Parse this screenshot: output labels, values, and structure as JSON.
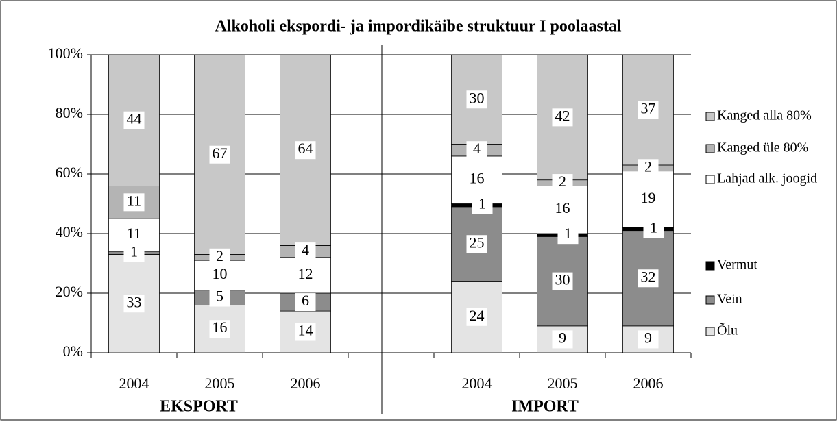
{
  "chart_data": {
    "type": "stacked_bar",
    "title": "Alkoholi ekspordi- ja impordikäibe struktuur I poolaastal",
    "annotations": [
      "EKSPORT",
      "IMPORT"
    ],
    "categories": [
      "2004",
      "2005",
      "2006",
      null,
      "2004",
      "2005",
      "2006"
    ],
    "series": [
      {
        "name": "Õlu",
        "color": "#e4e4e4",
        "values": [
          33,
          16,
          14,
          null,
          24,
          9,
          9
        ]
      },
      {
        "name": "Vein",
        "color": "#8c8c8c",
        "values": [
          1,
          5,
          6,
          null,
          25,
          30,
          32
        ]
      },
      {
        "name": "Vermut",
        "color": "#000000",
        "values": [
          null,
          null,
          null,
          null,
          1,
          1,
          1
        ]
      },
      {
        "name": "Lahjad alk. joogid",
        "color": "#ffffff",
        "values": [
          11,
          10,
          12,
          null,
          16,
          16,
          19
        ]
      },
      {
        "name": "Kanged üle 80%",
        "color": "#b4b4b4",
        "values": [
          11,
          2,
          4,
          null,
          4,
          2,
          2
        ]
      },
      {
        "name": "Kanged alla 80%",
        "color": "#c8c8c8",
        "values": [
          44,
          67,
          64,
          null,
          30,
          42,
          37
        ]
      }
    ],
    "ylim": [
      0,
      100
    ],
    "yticks": [
      {
        "value": 0,
        "label": "0%"
      },
      {
        "value": 20,
        "label": "20%"
      },
      {
        "value": 40,
        "label": "40%"
      },
      {
        "value": 60,
        "label": "60%"
      },
      {
        "value": 80,
        "label": "80%"
      },
      {
        "value": 100,
        "label": "100%"
      }
    ],
    "grid": true,
    "legend": "right"
  }
}
